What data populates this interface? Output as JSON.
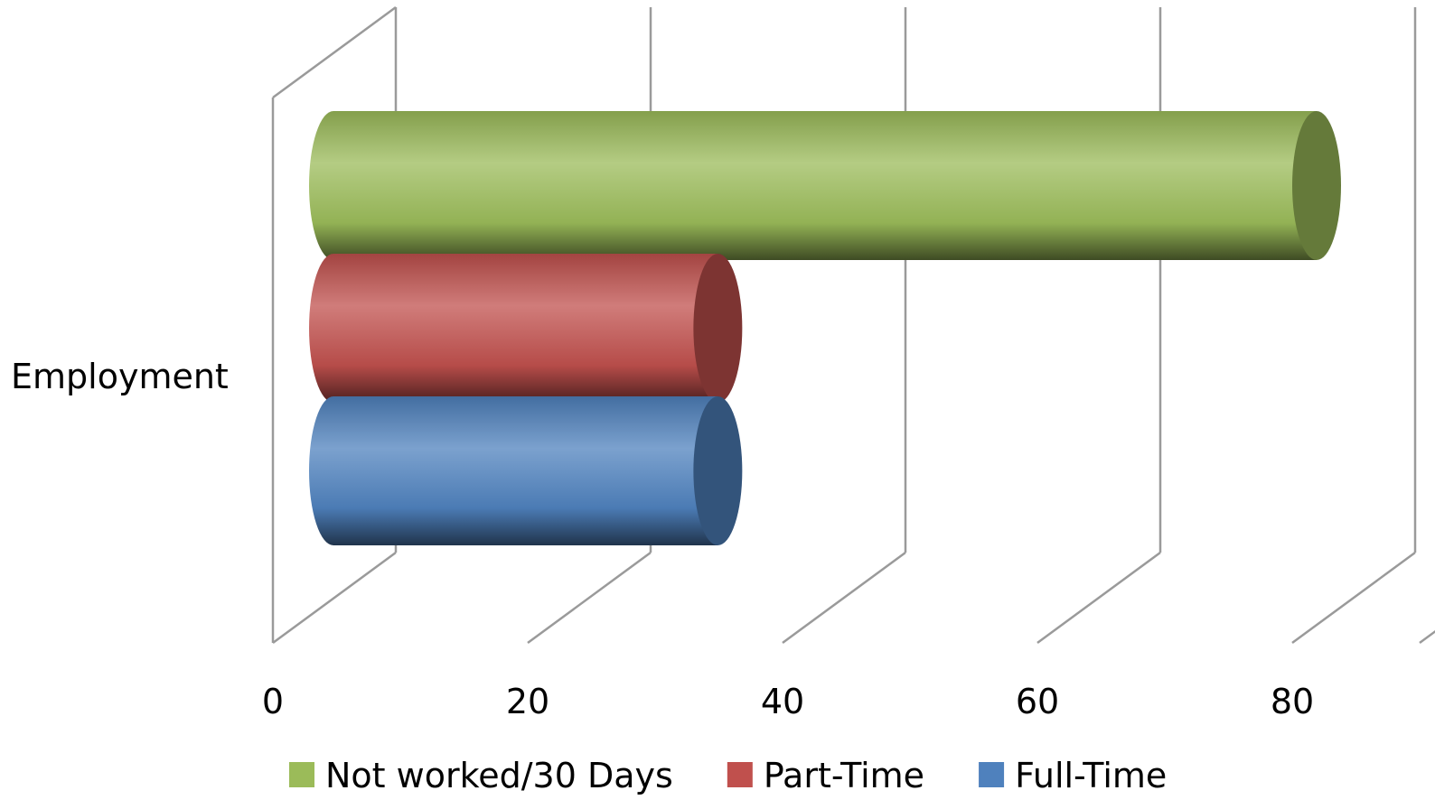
{
  "chart_data": {
    "type": "bar",
    "orientation": "horizontal",
    "style": "3d-cylinder",
    "categories": [
      "Employment"
    ],
    "series": [
      {
        "name": "Full-Time",
        "values": [
          34
        ],
        "color": "#4F81BD"
      },
      {
        "name": "Part-Time",
        "values": [
          34
        ],
        "color": "#C0504D"
      },
      {
        "name": "Not worked/30 Days",
        "values": [
          81
        ],
        "color": "#9BBB59"
      }
    ],
    "x_ticks": [
      "0",
      "20",
      "40",
      "60",
      "80"
    ],
    "xlim": [
      0,
      90
    ],
    "grid": true,
    "legend_position": "bottom",
    "legend_order": [
      "Not worked/30 Days",
      "Part-Time",
      "Full-Time"
    ]
  }
}
